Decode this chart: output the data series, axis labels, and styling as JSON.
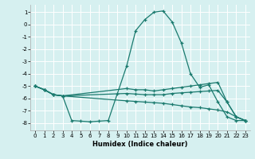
{
  "xlabel": "Humidex (Indice chaleur)",
  "background_color": "#d6f0f0",
  "grid_color": "#ffffff",
  "line_color": "#1a7a6e",
  "xlim": [
    -0.5,
    23.5
  ],
  "ylim": [
    -8.6,
    1.6
  ],
  "yticks": [
    1,
    0,
    -1,
    -2,
    -3,
    -4,
    -5,
    -6,
    -7,
    -8
  ],
  "xticks": [
    0,
    1,
    2,
    3,
    4,
    5,
    6,
    7,
    8,
    9,
    10,
    11,
    12,
    13,
    14,
    15,
    16,
    17,
    18,
    19,
    20,
    21,
    22,
    23
  ],
  "line1_x": [
    0,
    1,
    2,
    3,
    4,
    5,
    6,
    7,
    8,
    9,
    10,
    11,
    12,
    13,
    14,
    15,
    16,
    17,
    18,
    19,
    20,
    21,
    22,
    23
  ],
  "line1_y": [
    -5.0,
    -5.3,
    -5.7,
    -5.8,
    -7.8,
    -7.85,
    -7.9,
    -7.85,
    -7.8,
    -5.6,
    -3.4,
    -0.5,
    0.4,
    1.0,
    1.1,
    0.2,
    -1.5,
    -4.0,
    -5.1,
    -4.9,
    -6.3,
    -7.5,
    -7.8,
    -7.8
  ],
  "line2_x": [
    0,
    1,
    2,
    3,
    10,
    11,
    12,
    13,
    14,
    15,
    16,
    17,
    18,
    19,
    20,
    21,
    22,
    23
  ],
  "line2_y": [
    -5.0,
    -5.3,
    -5.7,
    -5.8,
    -5.2,
    -5.3,
    -5.3,
    -5.4,
    -5.3,
    -5.2,
    -5.1,
    -5.0,
    -4.9,
    -4.8,
    -4.7,
    -6.3,
    -7.5,
    -7.8
  ],
  "line3_x": [
    0,
    1,
    2,
    3,
    10,
    11,
    12,
    13,
    14,
    15,
    16,
    17,
    18,
    19,
    20,
    21,
    22,
    23
  ],
  "line3_y": [
    -5.0,
    -5.3,
    -5.7,
    -5.8,
    -5.6,
    -5.65,
    -5.7,
    -5.7,
    -5.7,
    -5.6,
    -5.55,
    -5.5,
    -5.45,
    -5.4,
    -5.35,
    -6.3,
    -7.5,
    -7.8
  ],
  "line4_x": [
    0,
    1,
    2,
    3,
    10,
    11,
    12,
    13,
    14,
    15,
    16,
    17,
    18,
    19,
    20,
    21,
    22,
    23
  ],
  "line4_y": [
    -5.0,
    -5.3,
    -5.7,
    -5.8,
    -6.2,
    -6.25,
    -6.3,
    -6.35,
    -6.4,
    -6.5,
    -6.6,
    -6.7,
    -6.75,
    -6.85,
    -6.95,
    -7.1,
    -7.5,
    -7.8
  ]
}
